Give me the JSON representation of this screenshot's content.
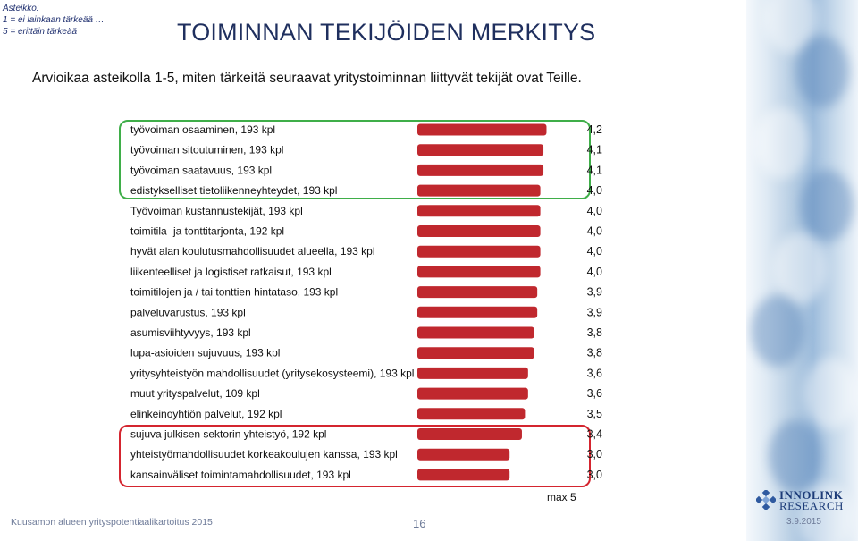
{
  "scale_note": {
    "line1": "Asteikko:",
    "line2": "1 = ei lainkaan tärkeää …",
    "line3": "5 = erittäin tärkeää"
  },
  "title": "TOIMINNAN TEKIJÖIDEN MERKITYS",
  "subtitle": "Arvioikaa asteikolla 1-5, miten tärkeitä seuraavat yritystoiminnan liittyvät tekijät ovat Teille.",
  "max_label": "max  5",
  "footer": {
    "left": "Kuusamon alueen yrityspotentiaalikartoitus 2015",
    "page": "16",
    "date": "3.9.2015"
  },
  "logo": {
    "line1": "INNOLINK",
    "line2": "RESEARCH"
  },
  "colors": {
    "bar": "#c0282e",
    "highlight_top": "#3fae49",
    "highlight_bottom": "#d4252f",
    "title": "#1f2f5e"
  },
  "chart_data": {
    "type": "bar",
    "orientation": "horizontal",
    "xlim": [
      0,
      5
    ],
    "categories": [
      "työvoiman osaaminen, 193 kpl",
      "työvoiman sitoutuminen, 193 kpl",
      "työvoiman saatavuus, 193 kpl",
      "edistykselliset tietoliikenneyhteydet, 193 kpl",
      "Työvoiman kustannustekijät, 193 kpl",
      "toimitila- ja tonttitarjonta, 192 kpl",
      "hyvät alan koulutusmahdollisuudet alueella, 193 kpl",
      "liikenteelliset ja logistiset ratkaisut, 193 kpl",
      "toimitilojen ja / tai tonttien hintataso, 193 kpl",
      "palveluvarustus, 193 kpl",
      "asumisviihtyvyys, 193 kpl",
      "lupa-asioiden sujuvuus, 193 kpl",
      "yritysyhteistyön mahdollisuudet (yritysekosysteemi), 193 kpl",
      "muut yrityspalvelut, 109 kpl",
      "elinkeinoyhtiön palvelut, 192 kpl",
      "sujuva julkisen sektorin yhteistyö, 192 kpl",
      "yhteistyömahdollisuudet korkeakoulujen kanssa, 193 kpl",
      "kansainväliset toimintamahdollisuudet, 193 kpl"
    ],
    "values": [
      4.2,
      4.1,
      4.1,
      4.0,
      4.0,
      4.0,
      4.0,
      4.0,
      3.9,
      3.9,
      3.8,
      3.8,
      3.6,
      3.6,
      3.5,
      3.4,
      3.0,
      3.0
    ],
    "value_labels": [
      "4,2",
      "4,1",
      "4,1",
      "4,0",
      "4,0",
      "4,0",
      "4,0",
      "4,0",
      "3,9",
      "3,9",
      "3,8",
      "3,8",
      "3,6",
      "3,6",
      "3,5",
      "3,4",
      "3,0",
      "3,0"
    ]
  }
}
